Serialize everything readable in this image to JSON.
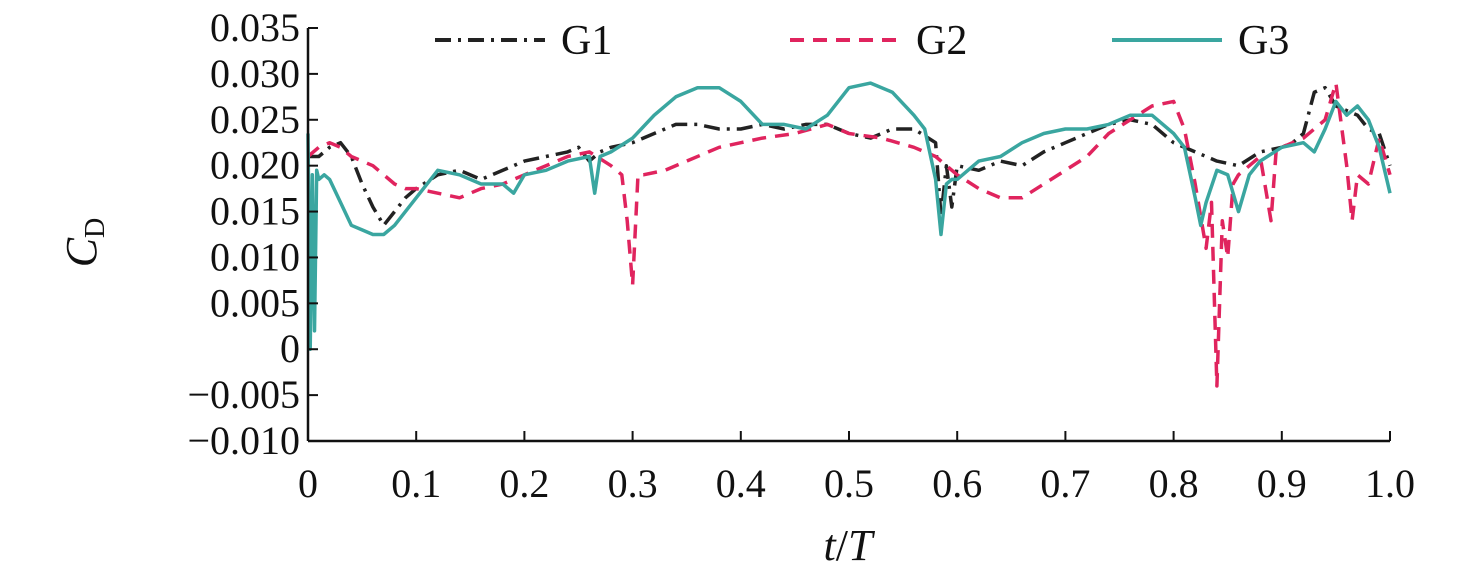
{
  "chart_data": {
    "type": "line",
    "title": "",
    "xlabel": {
      "main": "t",
      "sep": "/",
      "sub": "T"
    },
    "ylabel": {
      "main": "C",
      "sub": "D"
    },
    "xlim": [
      0,
      1.0
    ],
    "ylim": [
      -0.01,
      0.035
    ],
    "grid": false,
    "legend_position": "top",
    "x_ticks": [
      {
        "value": 0,
        "label": "0"
      },
      {
        "value": 0.1,
        "label": "0.1"
      },
      {
        "value": 0.2,
        "label": "0.2"
      },
      {
        "value": 0.3,
        "label": "0.3"
      },
      {
        "value": 0.4,
        "label": "0.4"
      },
      {
        "value": 0.5,
        "label": "0.5"
      },
      {
        "value": 0.6,
        "label": "0.6"
      },
      {
        "value": 0.7,
        "label": "0.7"
      },
      {
        "value": 0.8,
        "label": "0.8"
      },
      {
        "value": 0.9,
        "label": "0.9"
      },
      {
        "value": 1.0,
        "label": "1.0"
      }
    ],
    "y_ticks": [
      {
        "value": 0.035,
        "label": "0.035"
      },
      {
        "value": 0.03,
        "label": "0.030"
      },
      {
        "value": 0.025,
        "label": "0.025"
      },
      {
        "value": 0.02,
        "label": "0.020"
      },
      {
        "value": 0.015,
        "label": "0.015"
      },
      {
        "value": 0.01,
        "label": "0.010"
      },
      {
        "value": 0.005,
        "label": "0.005"
      },
      {
        "value": 0,
        "label": "0"
      },
      {
        "value": -0.005,
        "label": "−0.005"
      },
      {
        "value": -0.01,
        "label": "−0.010"
      }
    ],
    "series": [
      {
        "name": "G1",
        "color": "#222222",
        "dash": "dashdot",
        "x": [
          0,
          0.005,
          0.01,
          0.02,
          0.03,
          0.04,
          0.05,
          0.06,
          0.07,
          0.08,
          0.09,
          0.1,
          0.12,
          0.14,
          0.16,
          0.18,
          0.2,
          0.22,
          0.24,
          0.25,
          0.26,
          0.27,
          0.28,
          0.3,
          0.32,
          0.34,
          0.36,
          0.38,
          0.4,
          0.42,
          0.44,
          0.46,
          0.48,
          0.5,
          0.52,
          0.54,
          0.56,
          0.58,
          0.585,
          0.59,
          0.595,
          0.6,
          0.62,
          0.64,
          0.66,
          0.68,
          0.7,
          0.72,
          0.74,
          0.76,
          0.78,
          0.8,
          0.82,
          0.84,
          0.86,
          0.88,
          0.9,
          0.91,
          0.92,
          0.93,
          0.94,
          0.95,
          0.96,
          0.97,
          0.98,
          0.99,
          1.0
        ],
        "y": [
          0.021,
          0.021,
          0.021,
          0.022,
          0.0225,
          0.021,
          0.018,
          0.0155,
          0.0135,
          0.015,
          0.0165,
          0.0175,
          0.019,
          0.0195,
          0.0185,
          0.0195,
          0.0205,
          0.021,
          0.0215,
          0.022,
          0.0205,
          0.0215,
          0.022,
          0.0225,
          0.0235,
          0.0245,
          0.0245,
          0.024,
          0.024,
          0.0245,
          0.024,
          0.0245,
          0.0245,
          0.0235,
          0.023,
          0.024,
          0.024,
          0.0225,
          0.0145,
          0.02,
          0.0155,
          0.02,
          0.0195,
          0.0205,
          0.02,
          0.0215,
          0.0225,
          0.0235,
          0.0245,
          0.025,
          0.0245,
          0.0225,
          0.0215,
          0.0205,
          0.02,
          0.0215,
          0.022,
          0.0225,
          0.0235,
          0.028,
          0.0285,
          0.0265,
          0.026,
          0.0255,
          0.024,
          0.0235,
          0.02
        ]
      },
      {
        "name": "G2",
        "color": "#e0245e",
        "dash": "dash",
        "x": [
          0,
          0.01,
          0.02,
          0.03,
          0.04,
          0.05,
          0.06,
          0.07,
          0.08,
          0.09,
          0.1,
          0.12,
          0.14,
          0.16,
          0.18,
          0.2,
          0.22,
          0.24,
          0.26,
          0.28,
          0.29,
          0.295,
          0.3,
          0.305,
          0.31,
          0.33,
          0.35,
          0.38,
          0.4,
          0.42,
          0.45,
          0.48,
          0.5,
          0.53,
          0.56,
          0.58,
          0.6,
          0.62,
          0.64,
          0.66,
          0.68,
          0.7,
          0.72,
          0.74,
          0.76,
          0.78,
          0.8,
          0.81,
          0.82,
          0.83,
          0.835,
          0.84,
          0.845,
          0.85,
          0.855,
          0.86,
          0.87,
          0.88,
          0.89,
          0.895,
          0.9,
          0.92,
          0.94,
          0.95,
          0.96,
          0.965,
          0.97,
          0.98,
          0.99,
          1.0
        ],
        "y": [
          0.021,
          0.022,
          0.0225,
          0.022,
          0.021,
          0.0205,
          0.02,
          0.019,
          0.018,
          0.0175,
          0.0175,
          0.017,
          0.0165,
          0.0175,
          0.018,
          0.019,
          0.02,
          0.021,
          0.0215,
          0.02,
          0.019,
          0.014,
          0.007,
          0.019,
          0.019,
          0.0195,
          0.0205,
          0.022,
          0.0225,
          0.023,
          0.0235,
          0.0245,
          0.0235,
          0.023,
          0.022,
          0.021,
          0.019,
          0.0175,
          0.0165,
          0.0165,
          0.018,
          0.0195,
          0.021,
          0.0235,
          0.025,
          0.0265,
          0.027,
          0.024,
          0.018,
          0.011,
          0.016,
          -0.004,
          0.014,
          0.01,
          0.018,
          0.019,
          0.02,
          0.021,
          0.014,
          0.022,
          0.022,
          0.023,
          0.025,
          0.029,
          0.02,
          0.014,
          0.019,
          0.018,
          0.023,
          0.019
        ]
      },
      {
        "name": "G3",
        "color": "#3aa6a0",
        "dash": "solid",
        "x": [
          0,
          0.002,
          0.004,
          0.006,
          0.008,
          0.01,
          0.015,
          0.02,
          0.03,
          0.04,
          0.05,
          0.06,
          0.07,
          0.08,
          0.09,
          0.1,
          0.12,
          0.14,
          0.16,
          0.18,
          0.19,
          0.2,
          0.22,
          0.24,
          0.26,
          0.265,
          0.27,
          0.28,
          0.3,
          0.32,
          0.34,
          0.36,
          0.38,
          0.4,
          0.42,
          0.44,
          0.46,
          0.48,
          0.5,
          0.52,
          0.54,
          0.56,
          0.57,
          0.58,
          0.585,
          0.59,
          0.595,
          0.6,
          0.62,
          0.64,
          0.66,
          0.68,
          0.7,
          0.72,
          0.74,
          0.76,
          0.78,
          0.8,
          0.81,
          0.82,
          0.825,
          0.83,
          0.84,
          0.85,
          0.86,
          0.87,
          0.88,
          0.9,
          0.92,
          0.93,
          0.94,
          0.95,
          0.96,
          0.97,
          0.98,
          0.99,
          1.0
        ],
        "y": [
          0.0235,
          0.0,
          0.019,
          0.002,
          0.0195,
          0.0185,
          0.019,
          0.0185,
          0.016,
          0.0135,
          0.013,
          0.0125,
          0.0125,
          0.0135,
          0.015,
          0.0165,
          0.0195,
          0.019,
          0.018,
          0.018,
          0.017,
          0.019,
          0.0195,
          0.0205,
          0.021,
          0.017,
          0.021,
          0.0215,
          0.023,
          0.0255,
          0.0275,
          0.0285,
          0.0285,
          0.027,
          0.0245,
          0.0245,
          0.024,
          0.0255,
          0.0285,
          0.029,
          0.028,
          0.0255,
          0.024,
          0.0185,
          0.0125,
          0.018,
          0.0185,
          0.0185,
          0.0205,
          0.021,
          0.0225,
          0.0235,
          0.024,
          0.024,
          0.0245,
          0.0255,
          0.0255,
          0.0235,
          0.022,
          0.0165,
          0.0135,
          0.016,
          0.0195,
          0.019,
          0.015,
          0.019,
          0.0205,
          0.022,
          0.0225,
          0.0215,
          0.024,
          0.027,
          0.0255,
          0.0265,
          0.025,
          0.022,
          0.017
        ]
      }
    ]
  }
}
